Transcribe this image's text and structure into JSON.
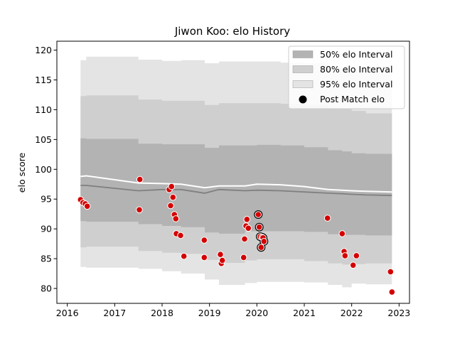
{
  "chart_data": {
    "type": "scatter",
    "title": "Jiwon Koo: elo History",
    "xlabel": "",
    "ylabel": "elo score",
    "xlim": [
      2015.78,
      2023.22
    ],
    "ylim": [
      77.5,
      121.5
    ],
    "xticks": [
      2016,
      2017,
      2018,
      2019,
      2020,
      2021,
      2022,
      2023
    ],
    "yticks": [
      80,
      85,
      90,
      95,
      100,
      105,
      110,
      115,
      120
    ],
    "grid": false,
    "legend": {
      "placement": "top-right",
      "entries": [
        {
          "label": "50% elo Interval",
          "color": "#b3b3b3",
          "kind": "patch"
        },
        {
          "label": "80% elo Interval",
          "color": "#cfcfcf",
          "kind": "patch"
        },
        {
          "label": "95% elo Interval",
          "color": "#e4e4e4",
          "kind": "patch"
        },
        {
          "label": "Post Match elo",
          "color": "#000000",
          "kind": "marker"
        }
      ]
    },
    "bands": [
      {
        "name": "95% elo Interval",
        "color": "#e4e4e4",
        "x": [
          2016.28,
          2016.4,
          2017.5,
          2018.0,
          2018.4,
          2018.9,
          2019.2,
          2019.75,
          2020.0,
          2020.5,
          2021.0,
          2021.5,
          2021.8,
          2022.0,
          2022.3,
          2022.85
        ],
        "upper": [
          118.3,
          118.9,
          118.4,
          118.2,
          118.3,
          117.8,
          118.1,
          118.1,
          118.1,
          117.9,
          117.8,
          117.2,
          117.0,
          116.8,
          116.5,
          116.2
        ],
        "lower": [
          83.6,
          83.5,
          83.3,
          82.9,
          82.5,
          81.5,
          80.6,
          80.9,
          81.1,
          81.1,
          81.0,
          80.6,
          80.2,
          80.8,
          80.7,
          80.6
        ]
      },
      {
        "name": "80% elo Interval",
        "color": "#cfcfcf",
        "x": [
          2016.28,
          2016.4,
          2017.5,
          2018.0,
          2018.4,
          2018.9,
          2019.2,
          2019.75,
          2020.0,
          2020.5,
          2021.0,
          2021.5,
          2021.8,
          2022.0,
          2022.3,
          2022.85
        ],
        "upper": [
          112.3,
          112.4,
          111.7,
          111.5,
          111.5,
          110.8,
          111.1,
          111.1,
          111.1,
          111.0,
          110.8,
          110.3,
          110.1,
          109.8,
          109.4,
          109.2
        ],
        "lower": [
          86.9,
          87.0,
          86.3,
          86.0,
          85.8,
          84.8,
          84.3,
          84.7,
          84.9,
          84.9,
          84.6,
          84.2,
          84.0,
          84.1,
          84.2,
          84.0
        ]
      },
      {
        "name": "50% elo Interval",
        "color": "#b3b3b3",
        "x": [
          2016.28,
          2016.4,
          2017.5,
          2018.0,
          2018.4,
          2018.9,
          2019.2,
          2019.75,
          2020.0,
          2020.5,
          2021.0,
          2021.5,
          2021.8,
          2022.0,
          2022.3,
          2022.85
        ],
        "upper": [
          105.2,
          105.1,
          104.3,
          104.2,
          104.2,
          103.6,
          104.0,
          104.0,
          104.1,
          104.0,
          103.7,
          103.2,
          103.0,
          102.7,
          102.6,
          102.5
        ],
        "lower": [
          91.3,
          91.2,
          90.8,
          90.5,
          90.3,
          89.4,
          89.2,
          89.6,
          89.6,
          89.6,
          89.5,
          89.1,
          89.0,
          89.0,
          88.9,
          88.8
        ]
      }
    ],
    "lines": [
      {
        "name": "median",
        "color": "#808080",
        "x": [
          2016.28,
          2016.4,
          2017.5,
          2018.0,
          2018.4,
          2018.9,
          2019.2,
          2019.75,
          2020.0,
          2020.5,
          2021.0,
          2021.5,
          2021.8,
          2022.0,
          2022.3,
          2022.85
        ],
        "y": [
          97.3,
          97.3,
          96.4,
          96.6,
          96.6,
          96.0,
          96.6,
          96.4,
          96.5,
          96.4,
          96.2,
          96.0,
          95.9,
          95.8,
          95.7,
          95.6
        ]
      },
      {
        "name": "mean",
        "color": "#ffffff",
        "x": [
          2016.28,
          2016.4,
          2017.5,
          2018.0,
          2018.4,
          2018.9,
          2019.2,
          2019.75,
          2020.0,
          2020.5,
          2021.0,
          2021.5,
          2021.8,
          2022.0,
          2022.3,
          2022.85
        ],
        "y": [
          98.8,
          98.9,
          97.7,
          97.6,
          97.5,
          96.9,
          97.2,
          97.2,
          97.5,
          97.4,
          97.1,
          96.6,
          96.5,
          96.4,
          96.3,
          96.2
        ]
      }
    ],
    "series": [
      {
        "name": "Post Match elo",
        "color": "#d40000",
        "x": [
          2016.28,
          2016.33,
          2016.38,
          2016.42,
          2017.53,
          2017.52,
          2018.15,
          2018.18,
          2018.2,
          2018.23,
          2018.26,
          2018.29,
          2018.3,
          2018.39,
          2018.46,
          2018.89,
          2018.89,
          2019.23,
          2019.25,
          2019.27,
          2019.72,
          2019.74,
          2019.77,
          2019.79,
          2019.82,
          2020.03,
          2020.05,
          2020.07,
          2020.09,
          2020.11,
          2020.13,
          2020.15,
          2021.49,
          2021.8,
          2021.84,
          2021.86,
          2022.03,
          2022.1,
          2022.82,
          2022.85
        ],
        "y": [
          94.9,
          94.4,
          94.2,
          93.8,
          98.3,
          93.2,
          96.6,
          93.9,
          97.1,
          95.3,
          92.4,
          91.7,
          89.2,
          88.9,
          85.4,
          85.2,
          88.1,
          85.7,
          84.2,
          84.7,
          85.2,
          88.3,
          90.5,
          91.6,
          90.1,
          92.4,
          90.3,
          88.7,
          86.9,
          88.6,
          88.5,
          87.9,
          91.8,
          89.2,
          86.2,
          85.5,
          83.9,
          85.5,
          82.8,
          79.4
        ],
        "highlight_x": [
          2020.03,
          2020.05,
          2020.07,
          2020.09,
          2020.11,
          2020.13,
          2020.15
        ],
        "highlight_y": [
          92.4,
          90.3,
          88.7,
          86.9,
          88.6,
          88.5,
          87.9
        ]
      }
    ]
  }
}
